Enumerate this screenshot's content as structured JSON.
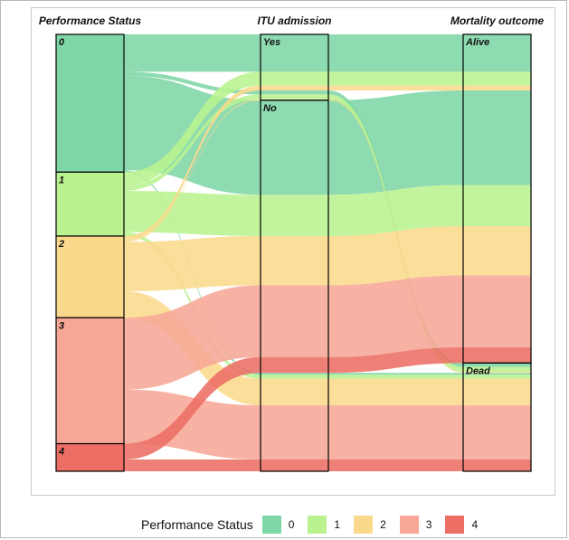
{
  "axes": [
    {
      "title": "Performance Status"
    },
    {
      "title": "ITU admission"
    },
    {
      "title": "Mortality outcome"
    }
  ],
  "nodes": {
    "ps": [
      "0",
      "1",
      "2",
      "3",
      "4"
    ],
    "itu": [
      "Yes",
      "No"
    ],
    "mortality": [
      "Alive",
      "Dead"
    ]
  },
  "legend": {
    "title": "Performance Status",
    "items": [
      {
        "label": "0",
        "color": "#7fd6a6"
      },
      {
        "label": "1",
        "color": "#b9f28f"
      },
      {
        "label": "2",
        "color": "#fbd98c"
      },
      {
        "label": "3",
        "color": "#f7a796"
      },
      {
        "label": "4",
        "color": "#ec6e65"
      }
    ]
  },
  "flows": [
    {
      "ps": "0",
      "itu": "Yes",
      "mortality": "Alive",
      "value": 38
    },
    {
      "ps": "0",
      "itu": "Yes",
      "mortality": "Dead",
      "value": 4
    },
    {
      "ps": "0",
      "itu": "No",
      "mortality": "Alive",
      "value": 96
    },
    {
      "ps": "0",
      "itu": "No",
      "mortality": "Dead",
      "value": 2
    },
    {
      "ps": "1",
      "itu": "Yes",
      "mortality": "Alive",
      "value": 14
    },
    {
      "ps": "1",
      "itu": "Yes",
      "mortality": "Dead",
      "value": 5
    },
    {
      "ps": "1",
      "itu": "No",
      "mortality": "Alive",
      "value": 42
    },
    {
      "ps": "1",
      "itu": "No",
      "mortality": "Dead",
      "value": 4
    },
    {
      "ps": "2",
      "itu": "Yes",
      "mortality": "Alive",
      "value": 5
    },
    {
      "ps": "2",
      "itu": "Yes",
      "mortality": "Dead",
      "value": 1
    },
    {
      "ps": "2",
      "itu": "No",
      "mortality": "Alive",
      "value": 50
    },
    {
      "ps": "2",
      "itu": "No",
      "mortality": "Dead",
      "value": 27
    },
    {
      "ps": "3",
      "itu": "No",
      "mortality": "Alive",
      "value": 73
    },
    {
      "ps": "3",
      "itu": "No",
      "mortality": "Dead",
      "value": 55
    },
    {
      "ps": "4",
      "itu": "No",
      "mortality": "Alive",
      "value": 16
    },
    {
      "ps": "4",
      "itu": "No",
      "mortality": "Dead",
      "value": 12
    }
  ]
}
